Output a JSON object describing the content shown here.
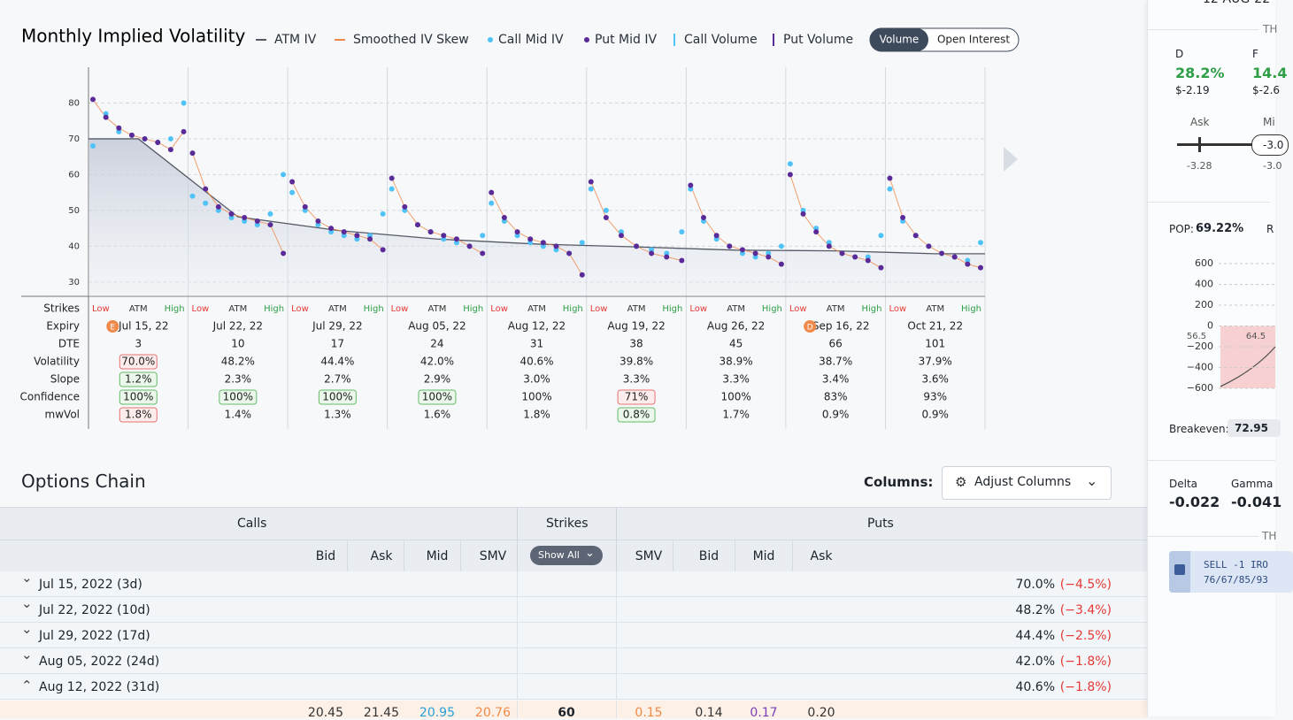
{
  "header": {
    "title": "Monthly Implied Volatility",
    "legend": [
      {
        "name": "ATM IV",
        "color": "#555b66",
        "kind": "line"
      },
      {
        "name": "Smoothed IV Skew",
        "color": "#f08a4b",
        "kind": "line"
      },
      {
        "name": "Call Mid IV",
        "color": "#4fc3f7",
        "kind": "dot"
      },
      {
        "name": "Put Mid IV",
        "color": "#5b2a99",
        "kind": "dot"
      },
      {
        "name": "Call Volume",
        "color": "#4fc3f7",
        "kind": "bar"
      },
      {
        "name": "Put Volume",
        "color": "#5b2a99",
        "kind": "bar"
      }
    ],
    "toggle": [
      "Volume",
      "Open Interest"
    ],
    "toggle_active": 0
  },
  "chart_data": {
    "type": "scatter",
    "ylim": [
      26,
      90
    ],
    "yticks": [
      30,
      40,
      50,
      60,
      70,
      80
    ],
    "grid": true,
    "atm_iv": [
      70,
      48.2,
      44.4,
      42,
      40.6,
      39.8,
      38.9,
      38.7,
      37.9
    ],
    "panels": [
      {
        "put": [
          81,
          76,
          73,
          71,
          70,
          69,
          67,
          72
        ],
        "call": [
          68,
          77,
          72,
          71,
          70,
          69,
          70,
          80
        ]
      },
      {
        "put": [
          66,
          56,
          51,
          49,
          48,
          47,
          46,
          38
        ],
        "call": [
          54,
          52,
          50,
          48,
          47,
          46,
          49,
          60
        ]
      },
      {
        "put": [
          58,
          51,
          47,
          45,
          44,
          43,
          42,
          39
        ],
        "call": [
          55,
          50,
          46,
          44,
          43,
          42,
          43,
          49
        ]
      },
      {
        "put": [
          59,
          51,
          46,
          44,
          43,
          42,
          40,
          38
        ],
        "call": [
          56,
          50,
          46,
          44,
          42,
          41,
          40,
          43
        ]
      },
      {
        "put": [
          55,
          48,
          44,
          42,
          41,
          40,
          38,
          32
        ],
        "call": [
          52,
          47,
          43,
          41,
          40,
          39,
          38,
          41
        ]
      },
      {
        "put": [
          58,
          48,
          43,
          40,
          38,
          37,
          36
        ],
        "call": [
          56,
          50,
          44,
          40,
          39,
          38,
          44
        ]
      },
      {
        "put": [
          57,
          48,
          43,
          40,
          39,
          38,
          37,
          35
        ],
        "call": [
          56,
          47,
          42,
          40,
          38,
          37,
          38,
          40
        ]
      },
      {
        "put": [
          60,
          49,
          44,
          40,
          38,
          37,
          36,
          34
        ],
        "call": [
          63,
          50,
          45,
          41,
          38,
          37,
          37,
          43
        ]
      },
      {
        "put": [
          59,
          48,
          43,
          40,
          38,
          37,
          35,
          34
        ],
        "call": [
          56,
          47,
          43,
          40,
          38,
          37,
          36,
          41
        ]
      }
    ]
  },
  "grid_table": {
    "row_labels": [
      "Strikes",
      "Expiry",
      "DTE",
      "Volatility",
      "Slope",
      "Confidence",
      "mwVol"
    ],
    "strike_labels": [
      "Low",
      "ATM",
      "High"
    ],
    "expiries": [
      {
        "expiry": "Jul 15, 22",
        "event": "E",
        "dte": 3,
        "volatility": "70.0%",
        "slope": "1.2%",
        "confidence": "100%",
        "mwvol": "1.8%",
        "badge": {
          "volatility": "red",
          "slope": "green",
          "confidence": "green",
          "mwvol": "red"
        }
      },
      {
        "expiry": "Jul 22, 22",
        "dte": 10,
        "volatility": "48.2%",
        "slope": "2.3%",
        "confidence": "100%",
        "mwvol": "1.4%",
        "badge": {
          "confidence": "green"
        }
      },
      {
        "expiry": "Jul 29, 22",
        "dte": 17,
        "volatility": "44.4%",
        "slope": "2.7%",
        "confidence": "100%",
        "mwvol": "1.3%",
        "badge": {
          "confidence": "green"
        }
      },
      {
        "expiry": "Aug 05, 22",
        "dte": 24,
        "volatility": "42.0%",
        "slope": "2.9%",
        "confidence": "100%",
        "mwvol": "1.6%",
        "badge": {
          "confidence": "green"
        }
      },
      {
        "expiry": "Aug 12, 22",
        "dte": 31,
        "volatility": "40.6%",
        "slope": "3.0%",
        "confidence": "100%",
        "mwvol": "1.8%",
        "badge": {}
      },
      {
        "expiry": "Aug 19, 22",
        "dte": 38,
        "volatility": "39.8%",
        "slope": "3.3%",
        "confidence": "71%",
        "mwvol": "0.8%",
        "badge": {
          "confidence": "red",
          "mwvol": "green"
        }
      },
      {
        "expiry": "Aug 26, 22",
        "dte": 45,
        "volatility": "38.9%",
        "slope": "3.3%",
        "confidence": "100%",
        "mwvol": "1.7%",
        "badge": {}
      },
      {
        "expiry": "Sep 16, 22",
        "event": "D",
        "dte": 66,
        "volatility": "38.7%",
        "slope": "3.4%",
        "confidence": "83%",
        "mwvol": "0.9%",
        "badge": {}
      },
      {
        "expiry": "Oct 21, 22",
        "dte": 101,
        "volatility": "37.9%",
        "slope": "3.6%",
        "confidence": "93%",
        "mwvol": "0.9%",
        "badge": {}
      }
    ]
  },
  "options_chain": {
    "title": "Options Chain",
    "columns_label": "Columns:",
    "adjust_button": "Adjust Columns",
    "group_calls": "Calls",
    "group_strikes": "Strikes",
    "group_puts": "Puts",
    "call_columns": [
      "Bid",
      "Ask",
      "Mid",
      "SMV"
    ],
    "show_all": "Show All",
    "put_columns": [
      "SMV",
      "Bid",
      "Mid",
      "Ask"
    ],
    "rows": [
      {
        "label": "Jul 15, 2022 (3d)",
        "iv": "70.0%",
        "change": "(−4.5%)",
        "expanded": false
      },
      {
        "label": "Jul 22, 2022 (10d)",
        "iv": "48.2%",
        "change": "(−3.4%)",
        "expanded": false
      },
      {
        "label": "Jul 29, 2022 (17d)",
        "iv": "44.4%",
        "change": "(−2.5%)",
        "expanded": false
      },
      {
        "label": "Aug 05, 2022 (24d)",
        "iv": "42.0%",
        "change": "(−1.8%)",
        "expanded": false
      },
      {
        "label": "Aug 12, 2022 (31d)",
        "iv": "40.6%",
        "change": "(−1.8%)",
        "expanded": true
      }
    ],
    "strike_row": {
      "calls": [
        "20.45",
        "21.45",
        "20.95",
        "20.76"
      ],
      "strike": "60",
      "puts": [
        "0.15",
        "0.14",
        "0.17",
        "0.20"
      ]
    }
  },
  "sidebar": {
    "top_date": "12-AUG-22",
    "section1": "TH",
    "d_label": "D",
    "d_pct": "28.2%",
    "d_price": "$-2.19",
    "f_label": "F",
    "f_pct": "14.4",
    "f_price": "$-2.6",
    "ask_label": "Ask",
    "mid_label": "Mi",
    "ask_value": "-3.28",
    "mid_value": "-3.0",
    "mid_box": "-3.0",
    "pop_label": "POP:",
    "pop": "69.22%",
    "r_label": "R",
    "pl_yticks": [
      600,
      400,
      200,
      0,
      {
        "value": -200,
        "label": "−200"
      },
      {
        "value": -400,
        "label": "−400"
      },
      {
        "value": -600,
        "label": "−600"
      }
    ],
    "pl_xlabels": [
      "56.5",
      "64.5"
    ],
    "breakeven_label": "Breakeven:",
    "breakeven": "72.95",
    "delta_label": "Delta",
    "delta": "-0.022",
    "gamma_label": "Gamma",
    "gamma": "-0.041",
    "section2": "TH",
    "order_line1": "SELL -1 IRO",
    "order_line2": "76/67/85/93"
  }
}
